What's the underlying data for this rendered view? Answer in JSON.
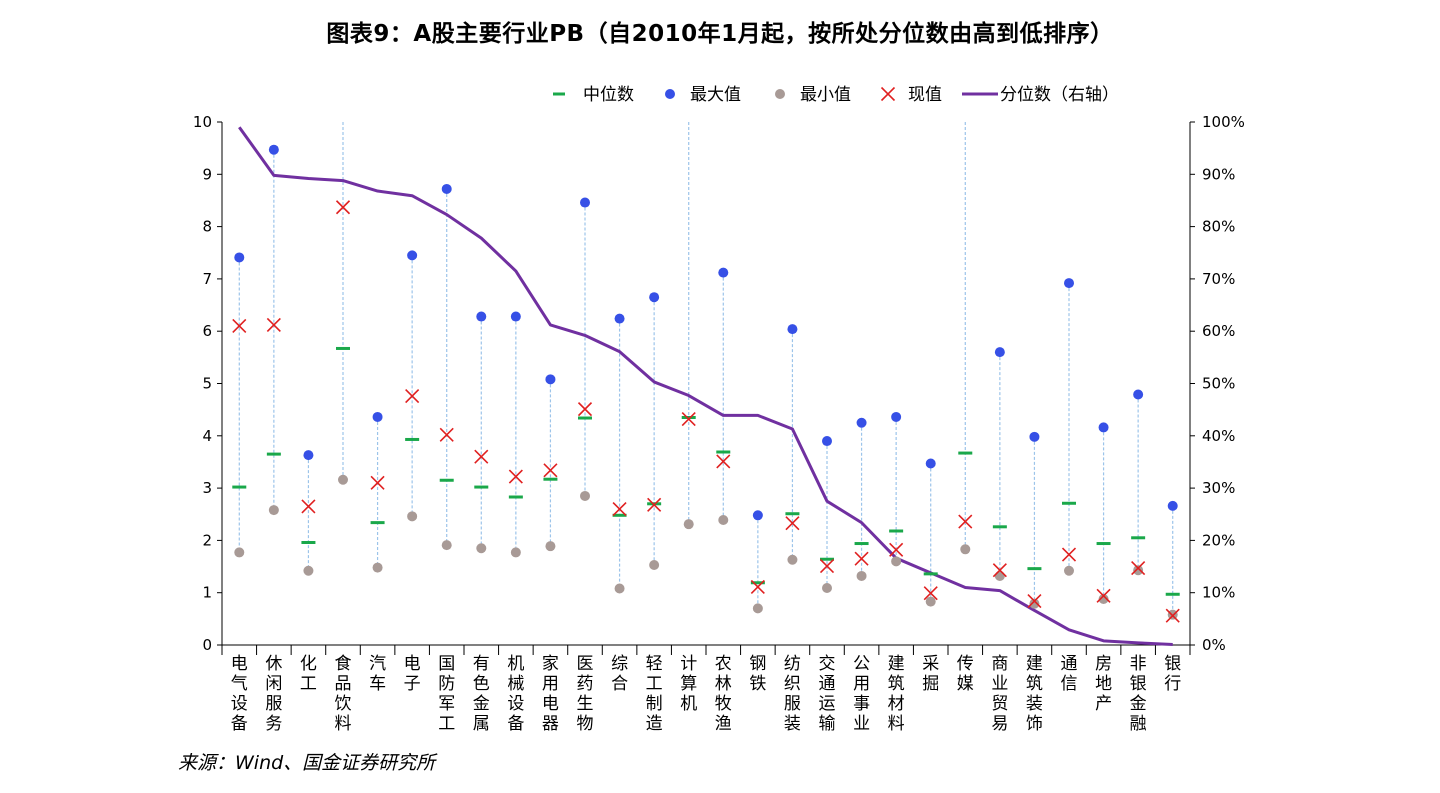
{
  "title": "图表9：A股主要行业PB（自2010年1月起，按所处分位数由高到低排序）",
  "source": "来源：Wind、国金证券研究所",
  "colors": {
    "median": "#1aa84a",
    "max": "#3650e6",
    "min": "#a89a96",
    "current": "#e02020",
    "percentile": "#7030a0",
    "range_line": "#9cc4ea"
  },
  "chart_data": {
    "type": "scatter",
    "title": "图表9：A股主要行业PB（自2010年1月起，按所处分位数由高到低排序）",
    "categories": [
      "电气设备",
      "休闲服务",
      "化工",
      "食品饮料",
      "汽车",
      "电子",
      "国防军工",
      "有色金属",
      "机械设备",
      "家用电器",
      "医药生物",
      "综合",
      "轻工制造",
      "计算机",
      "农林牧渔",
      "钢铁",
      "纺织服装",
      "交通运输",
      "公用事业",
      "建筑材料",
      "采掘",
      "传媒",
      "商业贸易",
      "建筑装饰",
      "通信",
      "房地产",
      "非银金融",
      "银行"
    ],
    "left_axis": {
      "ylim": [
        0,
        10
      ],
      "ticks": [
        "0",
        "1",
        "2",
        "3",
        "4",
        "5",
        "6",
        "7",
        "8",
        "9",
        "10"
      ]
    },
    "right_axis": {
      "ylim": [
        0,
        100
      ],
      "ticks": [
        "0%",
        "10%",
        "20%",
        "30%",
        "40%",
        "50%",
        "60%",
        "70%",
        "80%",
        "90%",
        "100%"
      ]
    },
    "legend_position": "top",
    "series": [
      {
        "name": "中位数",
        "marker": "dash",
        "axis": "left",
        "values": [
          3.02,
          3.65,
          1.96,
          5.67,
          2.34,
          3.93,
          3.15,
          3.02,
          2.83,
          3.17,
          4.34,
          2.48,
          2.7,
          4.35,
          3.69,
          1.19,
          2.51,
          1.64,
          1.94,
          2.18,
          1.36,
          3.67,
          2.26,
          1.46,
          2.71,
          1.94,
          2.05,
          0.97
        ]
      },
      {
        "name": "最大值",
        "marker": "dot",
        "axis": "left",
        "values": [
          7.41,
          9.47,
          3.63,
          null,
          4.36,
          7.45,
          8.72,
          6.28,
          6.28,
          5.08,
          8.46,
          6.24,
          6.65,
          null,
          7.12,
          2.48,
          6.04,
          3.9,
          4.25,
          4.36,
          3.47,
          null,
          5.6,
          3.98,
          6.92,
          4.16,
          4.79,
          2.66
        ]
      },
      {
        "name": "最小值",
        "marker": "dot",
        "axis": "left",
        "values": [
          1.77,
          2.58,
          1.42,
          3.16,
          1.48,
          2.46,
          1.91,
          1.85,
          1.77,
          1.89,
          2.85,
          1.08,
          1.53,
          2.31,
          2.39,
          0.7,
          1.63,
          1.09,
          1.32,
          1.6,
          0.83,
          1.83,
          1.32,
          0.79,
          1.42,
          0.88,
          1.43,
          0.58
        ]
      },
      {
        "name": "现值",
        "marker": "cross",
        "axis": "left",
        "values": [
          6.1,
          6.12,
          2.65,
          8.37,
          3.1,
          4.76,
          4.02,
          3.6,
          3.22,
          3.34,
          4.51,
          2.6,
          2.68,
          4.32,
          3.51,
          1.11,
          2.33,
          1.51,
          1.65,
          1.82,
          0.99,
          2.36,
          1.43,
          0.84,
          1.73,
          0.94,
          1.47,
          0.56
        ]
      },
      {
        "name": "分位数（右轴）",
        "marker": "line",
        "axis": "right",
        "values": [
          99,
          89.8,
          89.2,
          88.8,
          86.8,
          85.9,
          82.3,
          77.8,
          71.5,
          61.2,
          59.2,
          56.1,
          50.3,
          47.7,
          43.9,
          43.9,
          41.3,
          27.5,
          23.4,
          16.6,
          13.8,
          11.0,
          10.4,
          6.6,
          2.9,
          0.8,
          0.4,
          0.1
        ]
      }
    ]
  }
}
